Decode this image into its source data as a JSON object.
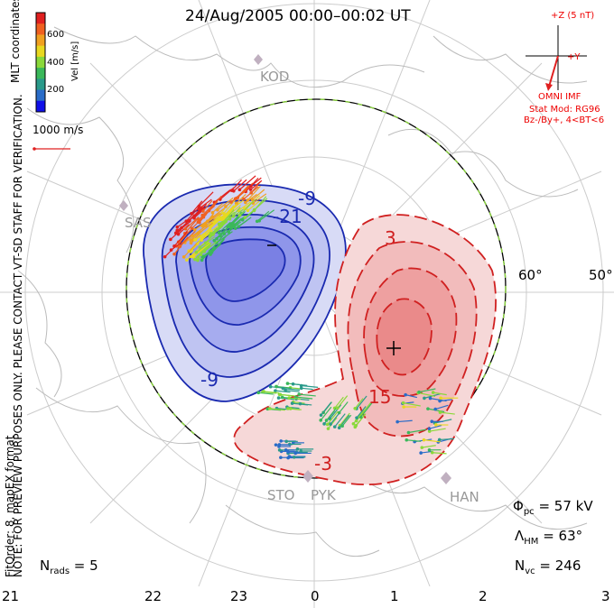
{
  "title": "24/Aug/2005 00:00–00:02 UT",
  "coords_label": "MLT coordinates",
  "note": "NOTE: FOR PREVIEW PURPOSES ONLY. PLEASE CONTACT VT-SD STAFF FOR VERIFICATION.",
  "fit_order": "FitOrder: 8, mapEX format",
  "colorbar": {
    "label": "Vel [m/s]",
    "ticks": [
      "600",
      "400",
      "200"
    ],
    "colors": [
      "#1010e8",
      "#2a6cc8",
      "#2a9a8a",
      "#3ab85a",
      "#8ad83a",
      "#e8d820",
      "#f0a020",
      "#f06020",
      "#e02020"
    ]
  },
  "reference_vector": "1000 m/s",
  "imf": {
    "z_label": "+Z (5 nT)",
    "y_label": "+Y",
    "source": "OMNI IMF",
    "stat_mod": "Stat Mod: RG96",
    "conditions": "Bz-/By+, 4<BT<6"
  },
  "stations": [
    "SAS",
    "KOD",
    "STO",
    "PYK",
    "HAN"
  ],
  "lat_labels": [
    "60°",
    "50°"
  ],
  "contour_labels": [
    "-9",
    "-21",
    "-9",
    "3",
    "15",
    "-3"
  ],
  "extrema": {
    "min": "–",
    "max": "+"
  },
  "stats": {
    "phi_pc": "Φpc = 57 kV",
    "lambda_hm": "ΛHM = 63°",
    "n_vc": "Nvc = 246",
    "n_rads": "Nrads = 5"
  },
  "mlt_ticks": [
    "21",
    "22",
    "23",
    "0",
    "1",
    "2",
    "3"
  ]
}
